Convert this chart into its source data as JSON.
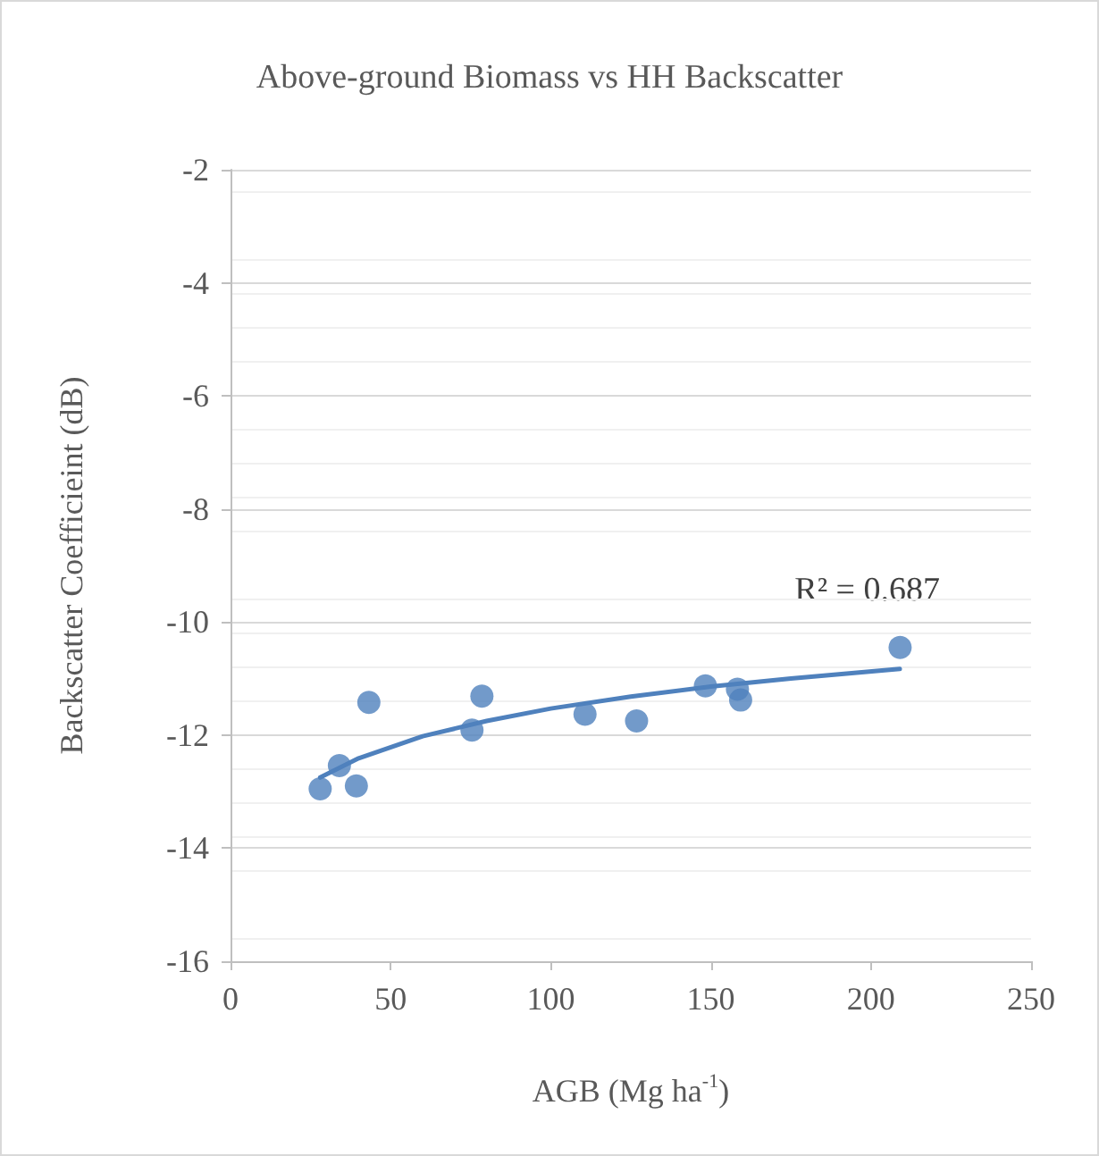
{
  "chart_data": {
    "type": "scatter",
    "title": "Above-ground Biomass vs HH Backscatter",
    "xlabel": "AGB (Mg ha$^{-1}$)",
    "ylabel": "Backscatter Coefficieint (dB)",
    "annotations": [
      "R² = 0.687"
    ],
    "series": [
      {
        "color": "#4f81bd",
        "marker": "circle",
        "x": [
          28,
          34,
          39.3,
          43.2,
          75.4,
          78.5,
          110.7,
          126.8,
          148.3,
          158.3,
          159.3,
          209.1
        ],
        "values": [
          -12.95,
          -12.54,
          -12.9,
          -11.42,
          -11.91,
          -11.31,
          -11.63,
          -11.75,
          -11.13,
          -11.19,
          -11.38,
          -10.45
        ]
      },
      {
        "type": "line",
        "color": "#4f81bd",
        "marker": "none",
        "line_style": "solid",
        "x": [
          28,
          40,
          60,
          80,
          100,
          125,
          150,
          175,
          209
        ],
        "values": [
          -12.75,
          -12.41,
          -12.02,
          -11.75,
          -11.53,
          -11.32,
          -11.14,
          -11.0,
          -10.83
        ]
      }
    ],
    "xlim": [
      0,
      250
    ],
    "xticks": [
      0,
      50,
      100,
      150,
      200,
      250
    ],
    "ylim": [
      -16,
      -2
    ],
    "yticks": [
      -16,
      -14,
      -12,
      -10,
      -8,
      -6,
      -4,
      -2
    ],
    "grid": "y"
  }
}
